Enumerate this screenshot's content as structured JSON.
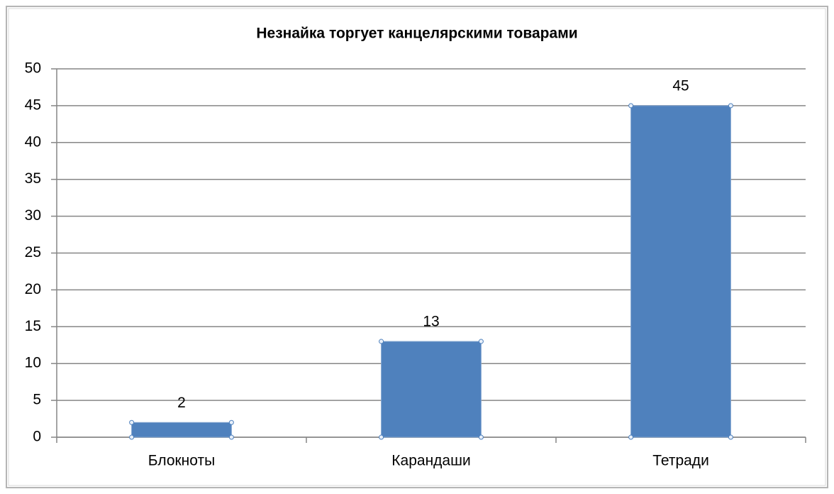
{
  "chart_data": {
    "type": "bar",
    "title": "Незнайка торгует канцелярскими товарами",
    "categories": [
      "Блокноты",
      "Карандаши",
      "Тетради"
    ],
    "values": [
      2,
      13,
      45
    ],
    "color": "#4f81bd",
    "ylim": [
      0,
      50
    ],
    "yticks": [
      0,
      5,
      10,
      15,
      20,
      25,
      30,
      35,
      40,
      45,
      50
    ],
    "grid": true,
    "data_labels": true
  }
}
